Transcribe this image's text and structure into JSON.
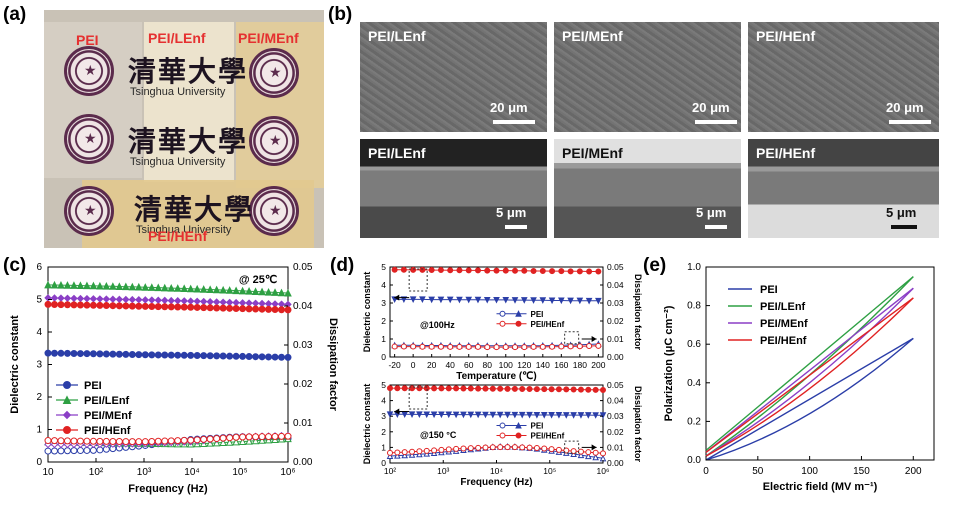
{
  "panels": {
    "a": "(a)",
    "b": "(b)",
    "c": "(c)",
    "d": "(d)",
    "e": "(e)"
  },
  "photo": {
    "labels": [
      "PEI",
      "PEI/LEnf",
      "PEI/MEnf",
      "PEI/HEnf"
    ],
    "calligraphy": "清華大學",
    "caption": "Tsinghua University"
  },
  "sem": {
    "top": [
      {
        "label": "PEI/LEnf",
        "scale": "20 μm"
      },
      {
        "label": "PEI/MEnf",
        "scale": "20 μm"
      },
      {
        "label": "PEI/HEnf",
        "scale": "20 μm"
      }
    ],
    "cross": [
      {
        "label": "PEI/LEnf",
        "scale": "5 μm"
      },
      {
        "label": "PEI/MEnf",
        "scale": "5 μm"
      },
      {
        "label": "PEI/HEnf",
        "scale": "5 μm"
      }
    ]
  },
  "chart_data": [
    {
      "type": "line",
      "panel": "c",
      "xlabel": "Frequency (Hz)",
      "ylabel_left": "Dielectric constant",
      "ylabel_right": "Dissipation factor",
      "xscale": "log",
      "xlim": [
        10,
        1000000
      ],
      "xticks": [
        "10",
        "10²",
        "10³",
        "10⁴",
        "10⁵",
        "10⁶"
      ],
      "ylim_left": [
        0,
        6
      ],
      "yticks_left": [
        "0",
        "1",
        "2",
        "3",
        "4",
        "5",
        "6"
      ],
      "ylim_right": [
        0,
        0.05
      ],
      "yticks_right": [
        "0.00",
        "0.01",
        "0.02",
        "0.03",
        "0.04",
        "0.05"
      ],
      "annotation": "@ 25℃",
      "legend_position": "lower-left",
      "x": [
        10,
        100,
        1000,
        10000,
        100000,
        1000000
      ],
      "series": [
        {
          "name": "PEI",
          "color": "#2b3ea8",
          "marker": "circle",
          "axis": "left",
          "values": [
            3.35,
            3.33,
            3.3,
            3.28,
            3.25,
            3.22
          ]
        },
        {
          "name": "PEI/LEnf",
          "color": "#2ea043",
          "marker": "triangle",
          "axis": "left",
          "values": [
            5.45,
            5.42,
            5.38,
            5.33,
            5.27,
            5.2
          ]
        },
        {
          "name": "PEI/MEnf",
          "color": "#8b3fc6",
          "marker": "diamond",
          "axis": "left",
          "values": [
            5.05,
            5.02,
            4.99,
            4.95,
            4.9,
            4.85
          ]
        },
        {
          "name": "PEI/HEnf",
          "color": "#e02222",
          "marker": "circle",
          "axis": "left",
          "values": [
            4.85,
            4.82,
            4.79,
            4.76,
            4.72,
            4.68
          ]
        },
        {
          "name": "PEI loss",
          "color": "#2b3ea8",
          "marker": "open-circle",
          "axis": "right",
          "values": [
            0.0028,
            0.003,
            0.0042,
            0.0058,
            0.0065,
            0.006
          ]
        },
        {
          "name": "PEI/LEnf loss",
          "color": "#2ea043",
          "marker": "open-triangle",
          "axis": "right",
          "values": [
            0.0052,
            0.005,
            0.0048,
            0.0046,
            0.0052,
            0.006
          ]
        },
        {
          "name": "PEI/MEnf loss",
          "color": "#8b3fc6",
          "marker": "open-diamond",
          "axis": "right",
          "values": [
            0.0045,
            0.0045,
            0.0047,
            0.0052,
            0.0065,
            0.0068
          ]
        },
        {
          "name": "PEI/HEnf loss",
          "color": "#e02222",
          "marker": "open-circle",
          "axis": "right",
          "values": [
            0.0055,
            0.0053,
            0.0052,
            0.0056,
            0.0064,
            0.0066
          ]
        }
      ],
      "legend": [
        "PEI",
        "PEI/LEnf",
        "PEI/MEnf",
        "PEI/HEnf"
      ]
    },
    {
      "type": "line",
      "panel": "d-top",
      "xlabel": "Temperature (℃)",
      "ylabel_left": "Dielectric constant",
      "ylabel_right": "Dissipation factor",
      "xlim": [
        -25,
        205
      ],
      "xticks": [
        "-20",
        "0",
        "20",
        "40",
        "60",
        "80",
        "100",
        "120",
        "140",
        "160",
        "180",
        "200"
      ],
      "ylim_left": [
        0,
        5
      ],
      "yticks_left": [
        "0",
        "1",
        "2",
        "3",
        "4",
        "5"
      ],
      "ylim_right": [
        0,
        0.05
      ],
      "yticks_right": [
        "0.00",
        "0.01",
        "0.02",
        "0.03",
        "0.04",
        "0.05"
      ],
      "annotation": "@100Hz",
      "x": [
        -20,
        -10,
        0,
        10,
        20,
        30,
        40,
        50,
        60,
        70,
        80,
        90,
        100,
        110,
        120,
        130,
        140,
        150,
        160,
        170,
        180,
        190,
        200
      ],
      "series": [
        {
          "name": "PEI",
          "color": "#2b3ea8",
          "axis": "left",
          "values": [
            3.2,
            3.2,
            3.2,
            3.2,
            3.19,
            3.19,
            3.19,
            3.18,
            3.18,
            3.18,
            3.17,
            3.17,
            3.17,
            3.16,
            3.16,
            3.15,
            3.15,
            3.14,
            3.14,
            3.13,
            3.13,
            3.12,
            3.12
          ]
        },
        {
          "name": "PEI/HEnf",
          "color": "#e02222",
          "axis": "left",
          "values": [
            4.85,
            4.85,
            4.84,
            4.84,
            4.83,
            4.83,
            4.82,
            4.82,
            4.81,
            4.81,
            4.8,
            4.8,
            4.8,
            4.79,
            4.79,
            4.78,
            4.78,
            4.77,
            4.77,
            4.76,
            4.76,
            4.75,
            4.75
          ]
        },
        {
          "name": "PEI loss",
          "color": "#2b3ea8",
          "axis": "right",
          "values": [
            0.0065,
            0.0065,
            0.0065,
            0.0064,
            0.0064,
            0.0064,
            0.0063,
            0.0063,
            0.0063,
            0.0063,
            0.0062,
            0.0062,
            0.0062,
            0.0062,
            0.0062,
            0.0063,
            0.0063,
            0.0064,
            0.0065,
            0.0066,
            0.0068,
            0.007,
            0.0072
          ]
        },
        {
          "name": "PEI/HEnf loss",
          "color": "#e02222",
          "axis": "right",
          "values": [
            0.0058,
            0.0058,
            0.0058,
            0.0057,
            0.0057,
            0.0057,
            0.0056,
            0.0056,
            0.0056,
            0.0056,
            0.0055,
            0.0055,
            0.0055,
            0.0055,
            0.0055,
            0.0056,
            0.0056,
            0.0057,
            0.0058,
            0.0059,
            0.006,
            0.0061,
            0.0062
          ]
        }
      ],
      "legend": [
        "PEI",
        "PEI/HEnf"
      ]
    },
    {
      "type": "line",
      "panel": "d-bottom",
      "xlabel": "Frequency (Hz)",
      "ylabel_left": "Dielectric constant",
      "ylabel_right": "Dissipation factor",
      "xscale": "log",
      "xlim": [
        100,
        1000000
      ],
      "xticks": [
        "10²",
        "10³",
        "10⁴",
        "10⁵",
        "10⁶"
      ],
      "ylim_left": [
        0,
        5
      ],
      "yticks_left": [
        "0",
        "1",
        "2",
        "3",
        "4",
        "5"
      ],
      "ylim_right": [
        0,
        0.05
      ],
      "yticks_right": [
        "0.00",
        "0.01",
        "0.02",
        "0.03",
        "0.04",
        "0.05"
      ],
      "annotation": "@150 °C",
      "x": [
        100,
        200,
        500,
        1000,
        2000,
        5000,
        10000,
        20000,
        50000,
        100000,
        200000,
        500000,
        1000000
      ],
      "series": [
        {
          "name": "PEI",
          "color": "#2b3ea8",
          "axis": "left",
          "values": [
            3.12,
            3.12,
            3.11,
            3.11,
            3.1,
            3.1,
            3.09,
            3.09,
            3.08,
            3.08,
            3.07,
            3.07,
            3.06
          ]
        },
        {
          "name": "PEI/HEnf",
          "color": "#e02222",
          "axis": "left",
          "values": [
            4.8,
            4.79,
            4.79,
            4.78,
            4.78,
            4.77,
            4.76,
            4.75,
            4.74,
            4.73,
            4.72,
            4.7,
            4.68
          ]
        },
        {
          "name": "PEI loss",
          "color": "#2b3ea8",
          "axis": "right",
          "values": [
            0.0045,
            0.005,
            0.006,
            0.007,
            0.008,
            0.0095,
            0.0105,
            0.0105,
            0.0095,
            0.008,
            0.0065,
            0.0045,
            0.003
          ]
        },
        {
          "name": "PEI/HEnf loss",
          "color": "#e02222",
          "axis": "right",
          "values": [
            0.0065,
            0.007,
            0.0078,
            0.0085,
            0.0092,
            0.0098,
            0.0102,
            0.0102,
            0.0098,
            0.009,
            0.008,
            0.007,
            0.0062
          ]
        }
      ],
      "legend": [
        "PEI",
        "PEI/HEnf"
      ]
    },
    {
      "type": "line",
      "panel": "e",
      "xlabel": "Electric field (MV m⁻¹)",
      "ylabel": "Polarization (μC cm⁻²)",
      "xlim": [
        0,
        220
      ],
      "xticks": [
        "0",
        "50",
        "100",
        "150",
        "200"
      ],
      "ylim": [
        0,
        1.0
      ],
      "yticks": [
        "0.0",
        "0.2",
        "0.4",
        "0.6",
        "0.8",
        "1.0"
      ],
      "legend_position": "top-left",
      "series": [
        {
          "name": "PEI",
          "color": "#2b3ea8",
          "upper": [
            [
              0,
              0.0
            ],
            [
              200,
              0.63
            ]
          ],
          "lower": [
            [
              200,
              0.63
            ],
            [
              100,
              0.24
            ],
            [
              0,
              0.0
            ]
          ]
        },
        {
          "name": "PEI/LEnf",
          "color": "#2ea043",
          "upper": [
            [
              0,
              0.05
            ],
            [
              200,
              0.95
            ]
          ],
          "lower": [
            [
              200,
              0.95
            ],
            [
              100,
              0.44
            ],
            [
              0,
              0.02
            ]
          ]
        },
        {
          "name": "PEI/MEnf",
          "color": "#8b3fc6",
          "upper": [
            [
              0,
              0.04
            ],
            [
              200,
              0.89
            ]
          ],
          "lower": [
            [
              200,
              0.89
            ],
            [
              100,
              0.4
            ],
            [
              0,
              0.02
            ]
          ]
        },
        {
          "name": "PEI/HEnf",
          "color": "#e02222",
          "upper": [
            [
              0,
              0.04
            ],
            [
              200,
              0.84
            ]
          ],
          "lower": [
            [
              200,
              0.84
            ],
            [
              100,
              0.37
            ],
            [
              0,
              0.02
            ]
          ]
        }
      ]
    }
  ]
}
